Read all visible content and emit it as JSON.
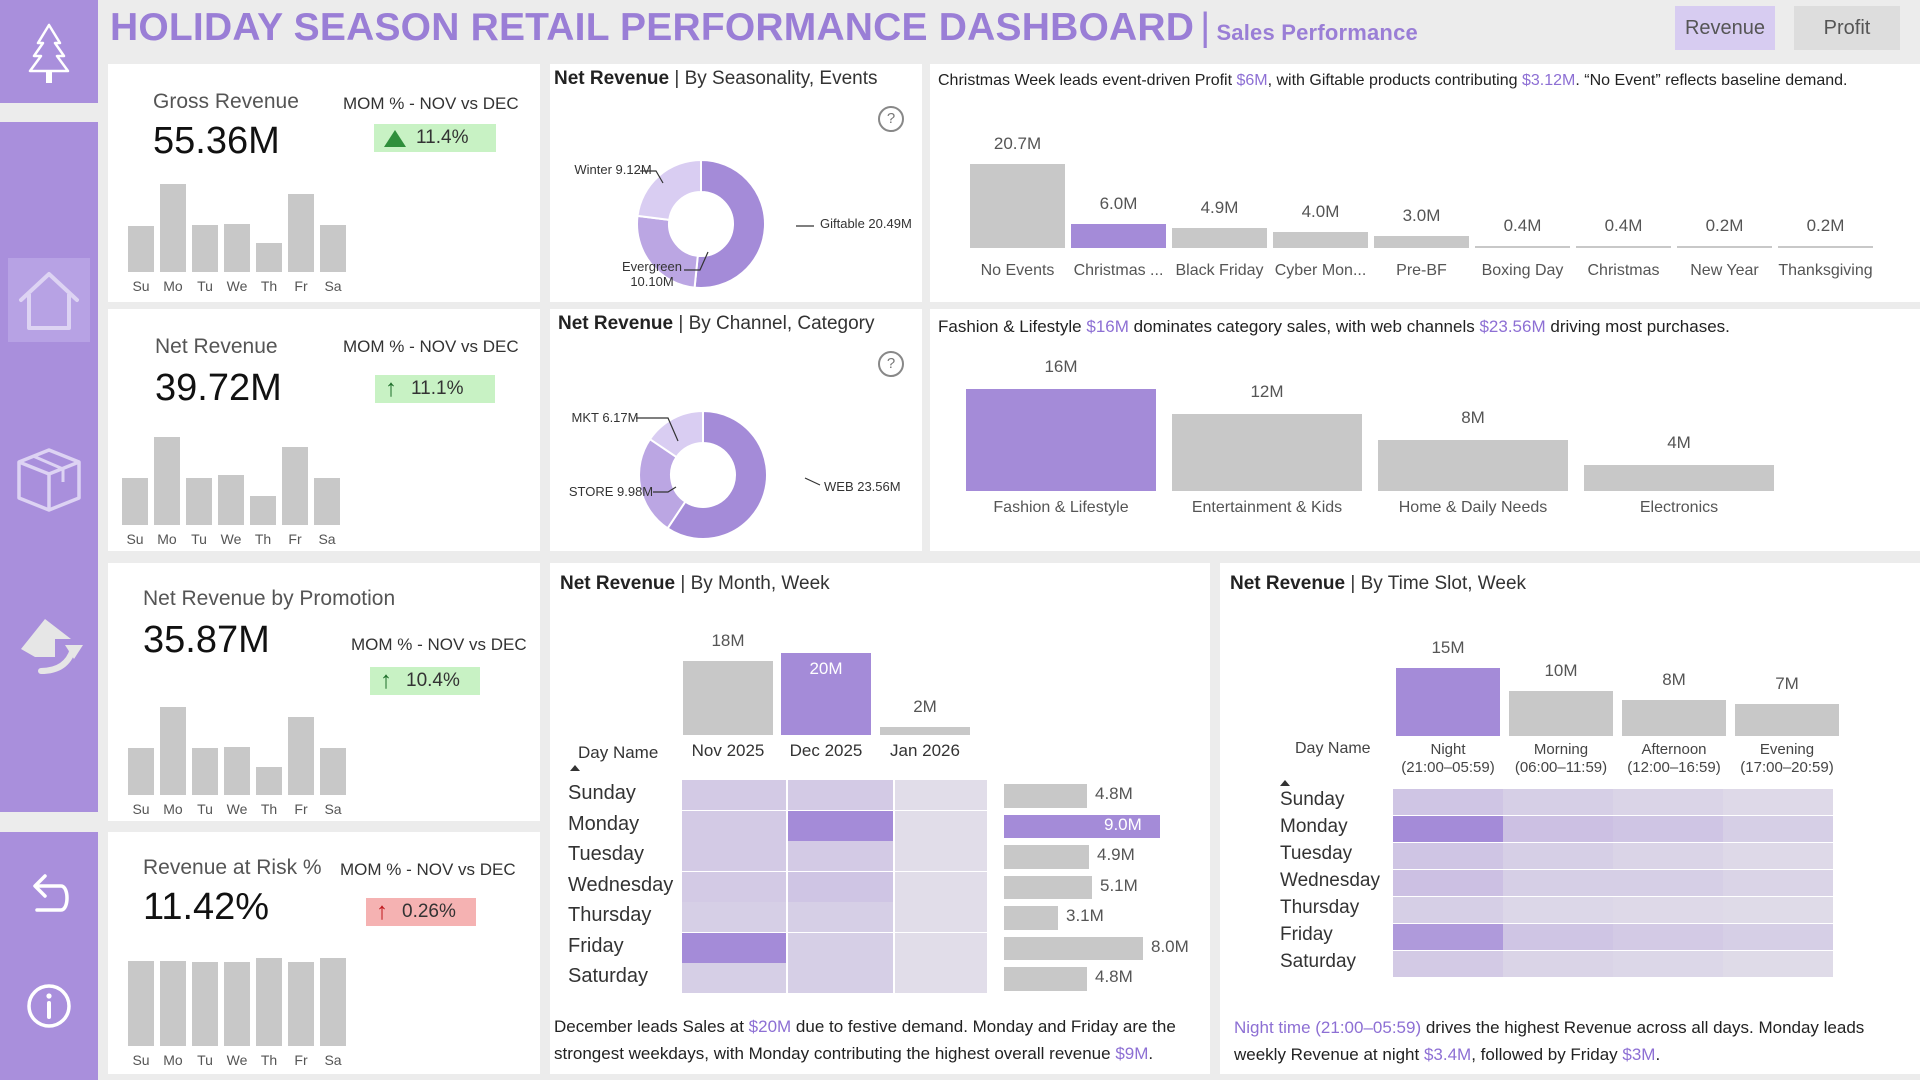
{
  "header": {
    "title": "HOLIDAY SEASON RETAIL PERFORMANCE DASHBOARD",
    "separator": "|",
    "subtitle": "Sales Performance"
  },
  "toggle": {
    "revenue": "Revenue",
    "profit": "Profit",
    "active": "revenue"
  },
  "colors": {
    "sidebar": "#a98fdc",
    "accent": "#a48bd8",
    "bar": "#c8c8c8",
    "green": "#c8f2c4",
    "red": "#f5b2b2",
    "title": "#9a7ed6"
  },
  "sidebar": {
    "icons": [
      "tree-icon",
      "home-icon",
      "box-icon",
      "share-icon",
      "undo-icon",
      "info-icon"
    ]
  },
  "kpis": [
    {
      "title": "Gross Revenue",
      "value": "55.36M",
      "mom_label": "MOM % - NOV vs DEC",
      "mom_value": "11.4%",
      "trend": "up",
      "status": "good",
      "days": [
        "Su",
        "Mo",
        "Tu",
        "We",
        "Th",
        "Fr",
        "Sa"
      ],
      "day_values": [
        0.52,
        1.0,
        0.53,
        0.55,
        0.33,
        0.89,
        0.53
      ]
    },
    {
      "title": "Net Revenue",
      "value": "39.72M",
      "mom_label": "MOM % - NOV vs DEC",
      "mom_value": "11.1%",
      "trend": "up",
      "status": "good",
      "days": [
        "Su",
        "Mo",
        "Tu",
        "We",
        "Th",
        "Fr",
        "Sa"
      ],
      "day_values": [
        0.53,
        1.0,
        0.53,
        0.57,
        0.33,
        0.89,
        0.53
      ]
    },
    {
      "title": "Net Revenue by Promotion",
      "value": "35.87M",
      "mom_label": "MOM % - NOV vs DEC",
      "mom_value": "10.4%",
      "trend": "up",
      "status": "good",
      "days": [
        "Su",
        "Mo",
        "Tu",
        "We",
        "Th",
        "Fr",
        "Sa"
      ],
      "day_values": [
        0.53,
        1.0,
        0.53,
        0.55,
        0.32,
        0.89,
        0.53
      ]
    },
    {
      "title": "Revenue at Risk %",
      "value": "11.42%",
      "mom_label": "MOM % - NOV vs DEC",
      "mom_value": "0.26%",
      "trend": "up",
      "status": "bad",
      "days": [
        "Su",
        "Mo",
        "Tu",
        "We",
        "Th",
        "Fr",
        "Sa"
      ],
      "day_values": [
        0.97,
        0.97,
        0.96,
        0.96,
        1.0,
        0.96,
        1.0
      ]
    }
  ],
  "seasonality": {
    "title_bold": "Net Revenue",
    "title_rest": "| By Seasonality, Events",
    "slices": [
      {
        "label": "Giftable 20.49M",
        "value": 20.49,
        "color": "#a48bd8"
      },
      {
        "label": "Evergreen 10.10M",
        "value": 10.1,
        "color": "#bba6e3"
      },
      {
        "label": "Winter 9.12M",
        "value": 9.12,
        "color": "#d9cdf2"
      }
    ],
    "help": "?"
  },
  "events": {
    "note_pre": "Christmas Week leads event-driven Profit ",
    "note_hl1": "$6M",
    "note_mid": ", with Giftable products contributing ",
    "note_hl2": "$3.12M",
    "note_post": ". “No Event” reflects baseline demand.",
    "categories": [
      "No Events",
      "Christmas ...",
      "Black Friday",
      "Cyber Mon...",
      "Pre-BF",
      "Boxing Day",
      "Christmas",
      "New Year",
      "Thanksgiving"
    ],
    "values": [
      20.7,
      6.0,
      4.9,
      4.0,
      3.0,
      0.4,
      0.4,
      0.2,
      0.2
    ],
    "labels": [
      "20.7M",
      "6.0M",
      "4.9M",
      "4.0M",
      "3.0M",
      "0.4M",
      "0.4M",
      "0.2M",
      "0.2M"
    ],
    "highlight": 1
  },
  "channel": {
    "title_bold": "Net Revenue",
    "title_rest": "| By Channel, Category",
    "slices": [
      {
        "label": "WEB 23.56M",
        "value": 23.56,
        "color": "#a48bd8"
      },
      {
        "label": "STORE 9.98M",
        "value": 9.98,
        "color": "#bba6e3"
      },
      {
        "label": "MKT 6.17M",
        "value": 6.17,
        "color": "#d9cdf2"
      }
    ],
    "help": "?"
  },
  "category": {
    "note_pre": "Fashion & Lifestyle ",
    "note_hl1": "$16M",
    "note_mid": " dominates category sales, with web channels ",
    "note_hl2": "$23.56M",
    "note_post": " driving most purchases.",
    "categories": [
      "Fashion & Lifestyle",
      "Entertainment & Kids",
      "Home & Daily Needs",
      "Electronics"
    ],
    "values": [
      16,
      12,
      8,
      4
    ],
    "labels": [
      "16M",
      "12M",
      "8M",
      "4M"
    ],
    "highlight": 0
  },
  "month": {
    "title_bold": "Net Revenue",
    "title_rest": "| By Month, Week",
    "months": [
      "Nov 2025",
      "Dec 2025",
      "Jan 2026"
    ],
    "values": [
      18,
      20,
      2
    ],
    "labels": [
      "18M",
      "20M",
      "2M"
    ],
    "highlight": 1,
    "day_header": "Day Name",
    "days": [
      "Sunday",
      "Monday",
      "Tuesday",
      "Wednesday",
      "Thursday",
      "Friday",
      "Saturday"
    ],
    "heat": [
      [
        0.35,
        0.35,
        0.15
      ],
      [
        0.35,
        1.0,
        0.15
      ],
      [
        0.35,
        0.35,
        0.15
      ],
      [
        0.35,
        0.4,
        0.15
      ],
      [
        0.3,
        0.3,
        0.15
      ],
      [
        1.0,
        0.3,
        0.15
      ],
      [
        0.3,
        0.3,
        0.15
      ]
    ],
    "day_totals": [
      4.8,
      9.0,
      4.9,
      5.1,
      3.1,
      8.0,
      4.8
    ],
    "day_total_labels": [
      "4.8M",
      "9.0M",
      "4.9M",
      "5.1M",
      "3.1M",
      "8.0M",
      "4.8M"
    ],
    "total_highlight": 1,
    "note_pre": "December leads Sales at ",
    "note_hl1": "$20M",
    "note_mid": " due to festive demand. Monday and Friday are the",
    "note_line2_pre": "strongest weekdays, with Monday contributing the highest overall revenue ",
    "note_hl2": "$9M",
    "note_post": "."
  },
  "timeslot": {
    "title_bold": "Net Revenue",
    "title_rest": "| By Time Slot, Week",
    "slots": [
      "Night",
      "Morning",
      "Afternoon",
      "Evening"
    ],
    "slot_times": [
      "(21:00–05:59)",
      "(06:00–11:59)",
      "(12:00–16:59)",
      "(17:00–20:59)"
    ],
    "values": [
      15,
      10,
      8,
      7
    ],
    "labels": [
      "15M",
      "10M",
      "8M",
      "7M"
    ],
    "highlight": 0,
    "day_header": "Day Name",
    "days": [
      "Sunday",
      "Monday",
      "Tuesday",
      "Wednesday",
      "Thursday",
      "Friday",
      "Saturday"
    ],
    "heat": [
      [
        0.4,
        0.3,
        0.25,
        0.2
      ],
      [
        1.0,
        0.45,
        0.4,
        0.3
      ],
      [
        0.4,
        0.3,
        0.25,
        0.2
      ],
      [
        0.45,
        0.3,
        0.3,
        0.25
      ],
      [
        0.3,
        0.22,
        0.2,
        0.18
      ],
      [
        0.85,
        0.4,
        0.35,
        0.3
      ],
      [
        0.35,
        0.25,
        0.22,
        0.18
      ]
    ],
    "note_hl1": "Night time (21:00–05:59)",
    "note_mid": " drives the highest Revenue across all days. Monday leads",
    "note_line2_pre": "weekly Revenue at night ",
    "note_hl2": "$3.4M",
    "note_mid2": ", followed by Friday ",
    "note_hl3": "$3M",
    "note_post": "."
  }
}
